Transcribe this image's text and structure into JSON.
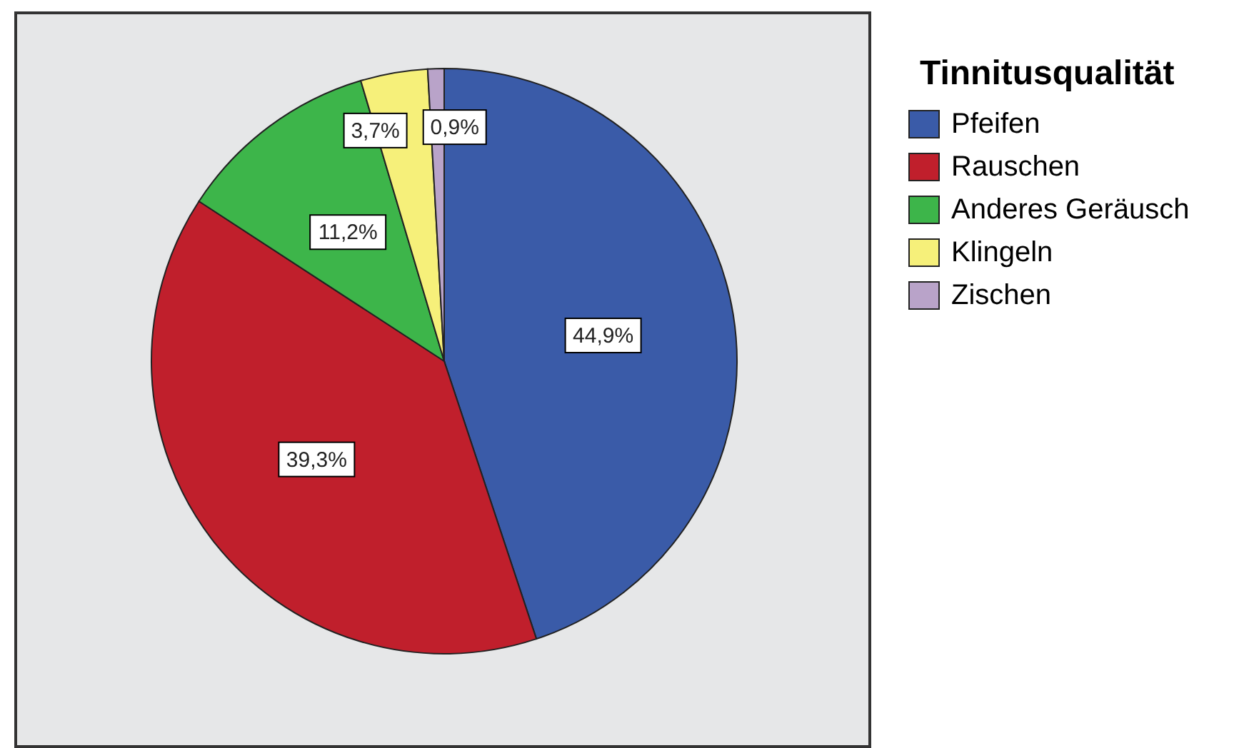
{
  "chart_data": {
    "type": "pie",
    "legend_title": "Tinnitusqualität",
    "categories": [
      "Pfeifen",
      "Rauschen",
      "Anderes Geräusch",
      "Klingeln",
      "Zischen"
    ],
    "values": [
      44.9,
      39.3,
      11.2,
      3.7,
      0.9
    ],
    "colors": [
      "#3a5ba8",
      "#c01f2c",
      "#3db54a",
      "#f6f07a",
      "#b9a3c9"
    ],
    "value_labels": [
      "44,9%",
      "39,3%",
      "11,2%",
      "3,7%",
      "0,9%"
    ],
    "legend": "top right"
  }
}
